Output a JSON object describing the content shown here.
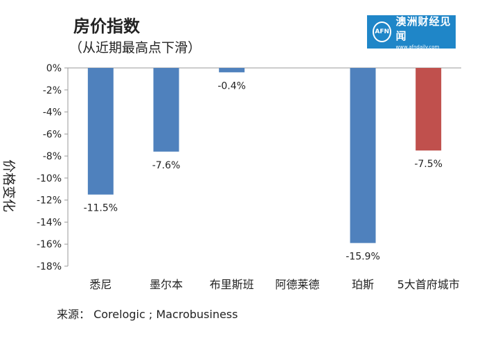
{
  "header": {
    "title": "房价指数",
    "subtitle": "（从近期最高点下滑）",
    "logo_name": "澳洲财经见闻",
    "logo_url": "www.afndaily.com",
    "logo_badge": "AFN"
  },
  "source": "来源： Corelogic ; Macrobusiness",
  "colors": {
    "blue": "#4f81bd",
    "red": "#c0504d",
    "axis": "#9a9a9a"
  },
  "chart_data": {
    "type": "bar",
    "title": "房价指数",
    "subtitle": "（从近期最高点下滑）",
    "xlabel": "",
    "ylabel": "价格变化",
    "ylim": [
      -18,
      0
    ],
    "yticks": [
      0,
      -2,
      -4,
      -6,
      -8,
      -10,
      -12,
      -14,
      -16,
      -18
    ],
    "yticklabels": [
      "0%",
      "-2%",
      "-4%",
      "-6%",
      "-8%",
      "-10%",
      "-12%",
      "-14%",
      "-16%",
      "-18%"
    ],
    "grid": false,
    "categories": [
      "悉尼",
      "墨尔本",
      "布里斯班",
      "阿德莱德",
      "珀斯",
      "5大首府城市"
    ],
    "values": [
      -11.5,
      -7.6,
      -0.4,
      null,
      -15.9,
      -7.5
    ],
    "data_labels": [
      "-11.5%",
      "-7.6%",
      "-0.4%",
      "",
      "-15.9%",
      "-7.5%"
    ],
    "bar_colors": [
      "#4f81bd",
      "#4f81bd",
      "#4f81bd",
      "#4f81bd",
      "#4f81bd",
      "#c0504d"
    ]
  }
}
